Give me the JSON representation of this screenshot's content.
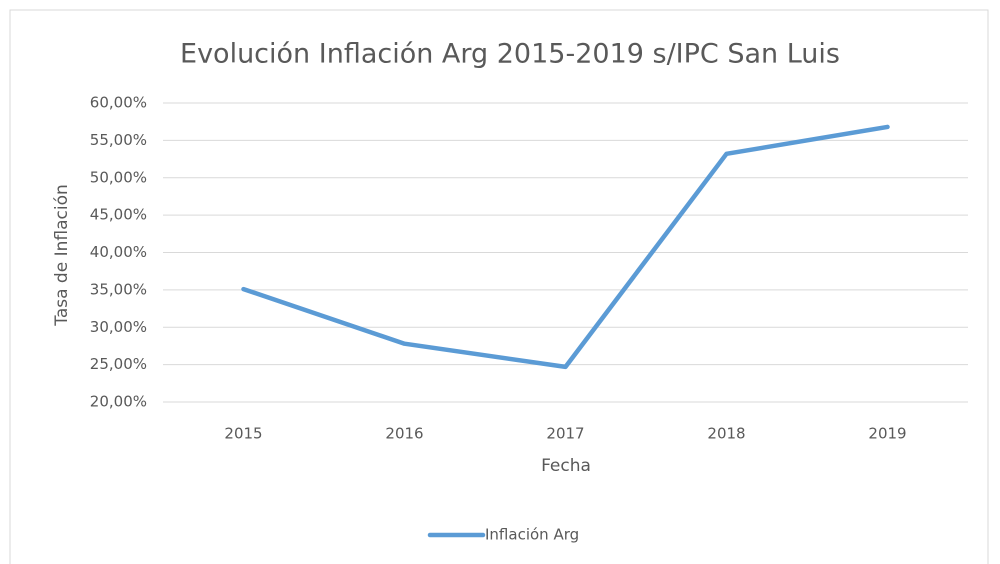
{
  "chart_data": {
    "type": "line",
    "title": "Evolución Inflación Arg 2015-2019 s/IPC San Luis",
    "x_label": "Fecha",
    "y_label": "Tasa de Inflación",
    "categories": [
      "2015",
      "2016",
      "2017",
      "2018",
      "2019"
    ],
    "series": [
      {
        "name": "Inflación Arg",
        "color": "#5b9bd5",
        "values": [
          35.1,
          27.8,
          24.7,
          53.2,
          56.8
        ]
      }
    ],
    "ylim": [
      20,
      60
    ],
    "yticks": [
      {
        "value": 20,
        "label": "20,00%"
      },
      {
        "value": 25,
        "label": "25,00%"
      },
      {
        "value": 30,
        "label": "30,00%"
      },
      {
        "value": 35,
        "label": "35,00%"
      },
      {
        "value": 40,
        "label": "40,00%"
      },
      {
        "value": 45,
        "label": "45,00%"
      },
      {
        "value": 50,
        "label": "50,00%"
      },
      {
        "value": 55,
        "label": "55,00%"
      },
      {
        "value": 60,
        "label": "60,00%"
      }
    ],
    "grid": true,
    "legend": "bottom"
  }
}
